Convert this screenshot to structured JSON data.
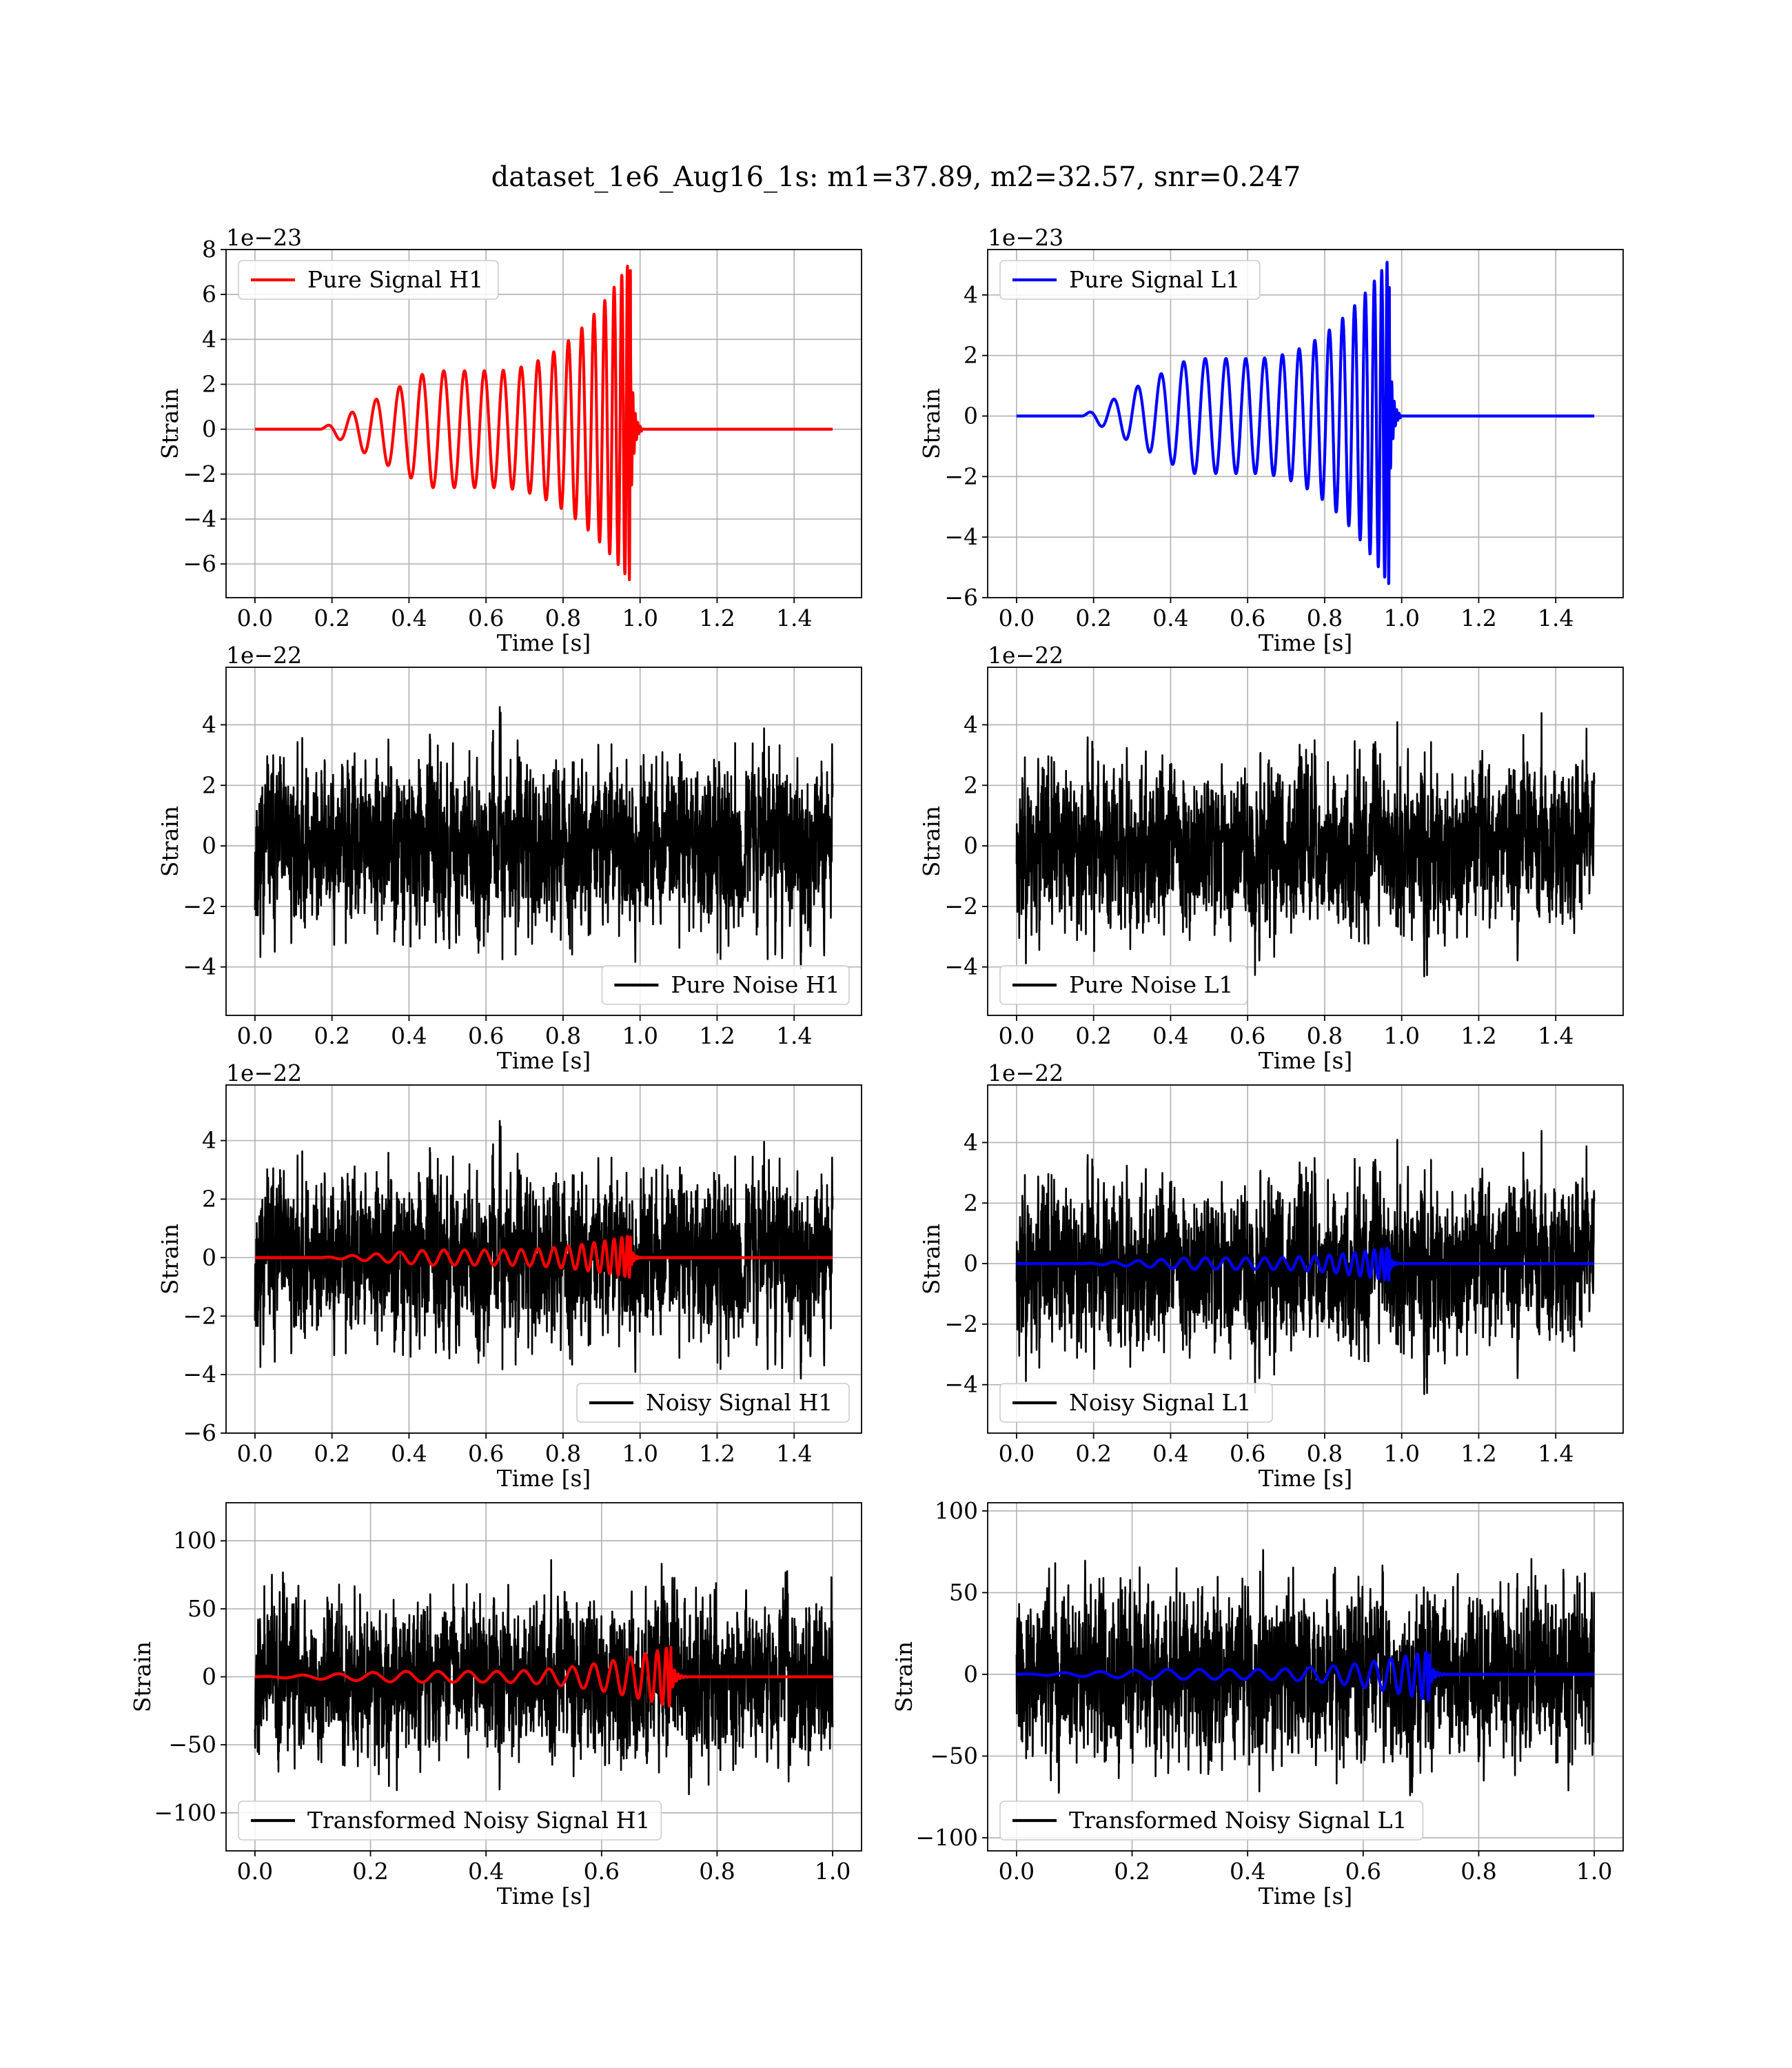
{
  "figure": {
    "title": "dataset_1e6_Aug16_1s: m1=37.89, m2=32.57, snr=0.247"
  },
  "colors": {
    "h1_signal": "#ff0000",
    "l1_signal": "#0000ff",
    "noise": "#000000",
    "grid": "#b0b0b0"
  },
  "chart_data": [
    {
      "type": "line",
      "panel": "pure-signal-h1",
      "xlabel": "Time [s]",
      "ylabel": "Strain",
      "offset_text": "1e−23",
      "legend_position": "top-left",
      "xlim": [
        -0.075,
        1.575
      ],
      "ylim": [
        -7.5,
        8.0
      ],
      "xticks": [
        0.0,
        0.2,
        0.4,
        0.6,
        0.8,
        1.0,
        1.2,
        1.4
      ],
      "xtick_labels": [
        "0.0",
        "0.2",
        "0.4",
        "0.6",
        "0.8",
        "1.0",
        "1.2",
        "1.4"
      ],
      "yticks": [
        -6,
        -4,
        -2,
        0,
        2,
        4,
        6,
        8
      ],
      "ytick_labels": [
        "−6",
        "−4",
        "−2",
        "0",
        "2",
        "4",
        "6",
        "8"
      ],
      "grid": true,
      "series": [
        {
          "name": "Pure Signal H1",
          "color": "#ff0000",
          "kind": "chirp",
          "start": 0.17,
          "merger": 0.975,
          "plateau": 2.6,
          "peak_pos": 7.5,
          "peak_neg": 6.8,
          "x_end": 1.5
        }
      ]
    },
    {
      "type": "line",
      "panel": "pure-signal-l1",
      "xlabel": "Time [s]",
      "ylabel": "Strain",
      "offset_text": "1e−23",
      "legend_position": "top-left",
      "xlim": [
        -0.075,
        1.575
      ],
      "ylim": [
        -6.0,
        5.5
      ],
      "xticks": [
        0.0,
        0.2,
        0.4,
        0.6,
        0.8,
        1.0,
        1.2,
        1.4
      ],
      "xtick_labels": [
        "0.0",
        "0.2",
        "0.4",
        "0.6",
        "0.8",
        "1.0",
        "1.2",
        "1.4"
      ],
      "yticks": [
        -6,
        -4,
        -2,
        0,
        2,
        4
      ],
      "ytick_labels": [
        "−6",
        "−4",
        "−2",
        "0",
        "2",
        "4"
      ],
      "grid": true,
      "series": [
        {
          "name": "Pure Signal L1",
          "color": "#0000ff",
          "kind": "chirp",
          "start": 0.17,
          "merger": 0.968,
          "plateau": 1.9,
          "peak_pos": 5.2,
          "peak_neg": 5.6,
          "x_end": 1.5
        }
      ]
    },
    {
      "type": "line",
      "panel": "pure-noise-h1",
      "xlabel": "Time [s]",
      "ylabel": "Strain",
      "offset_text": "1e−22",
      "legend_position": "bottom-right",
      "xlim": [
        -0.075,
        1.575
      ],
      "ylim": [
        -5.6,
        5.9
      ],
      "xticks": [
        0.0,
        0.2,
        0.4,
        0.6,
        0.8,
        1.0,
        1.2,
        1.4
      ],
      "xtick_labels": [
        "0.0",
        "0.2",
        "0.4",
        "0.6",
        "0.8",
        "1.0",
        "1.2",
        "1.4"
      ],
      "yticks": [
        -4,
        -2,
        0,
        2,
        4
      ],
      "ytick_labels": [
        "−4",
        "−2",
        "0",
        "2",
        "4"
      ],
      "grid": true,
      "series": [
        {
          "name": "Pure Noise H1",
          "color": "#000000",
          "kind": "noise",
          "amplitude": 5.3,
          "seed": 11,
          "x_end": 1.5
        }
      ]
    },
    {
      "type": "line",
      "panel": "pure-noise-l1",
      "xlabel": "Time [s]",
      "ylabel": "Strain",
      "offset_text": "1e−22",
      "legend_position": "bottom-left",
      "xlim": [
        -0.075,
        1.575
      ],
      "ylim": [
        -5.6,
        5.9
      ],
      "xticks": [
        0.0,
        0.2,
        0.4,
        0.6,
        0.8,
        1.0,
        1.2,
        1.4
      ],
      "xtick_labels": [
        "0.0",
        "0.2",
        "0.4",
        "0.6",
        "0.8",
        "1.0",
        "1.2",
        "1.4"
      ],
      "yticks": [
        -4,
        -2,
        0,
        2,
        4
      ],
      "ytick_labels": [
        "−4",
        "−2",
        "0",
        "2",
        "4"
      ],
      "grid": true,
      "series": [
        {
          "name": "Pure Noise L1",
          "color": "#000000",
          "kind": "noise",
          "amplitude": 5.2,
          "seed": 23,
          "x_end": 1.5
        }
      ]
    },
    {
      "type": "line",
      "panel": "noisy-signal-h1",
      "xlabel": "Time [s]",
      "ylabel": "Strain",
      "offset_text": "1e−22",
      "legend_position": "bottom-right",
      "xlim": [
        -0.075,
        1.575
      ],
      "ylim": [
        -6.0,
        5.9
      ],
      "xticks": [
        0.0,
        0.2,
        0.4,
        0.6,
        0.8,
        1.0,
        1.2,
        1.4
      ],
      "xtick_labels": [
        "0.0",
        "0.2",
        "0.4",
        "0.6",
        "0.8",
        "1.0",
        "1.2",
        "1.4"
      ],
      "yticks": [
        -6,
        -4,
        -2,
        0,
        2,
        4
      ],
      "ytick_labels": [
        "−6",
        "−4",
        "−2",
        "0",
        "2",
        "4"
      ],
      "grid": true,
      "series": [
        {
          "name": "Noisy Signal H1",
          "color": "#000000",
          "kind": "noise",
          "amplitude": 5.4,
          "seed": 11,
          "x_end": 1.5
        },
        {
          "color": "#ff0000",
          "kind": "chirp",
          "start": 0.17,
          "merger": 0.975,
          "plateau": 0.26,
          "peak_pos": 0.75,
          "peak_neg": 0.68,
          "x_end": 1.5
        }
      ]
    },
    {
      "type": "line",
      "panel": "noisy-signal-l1",
      "xlabel": "Time [s]",
      "ylabel": "Strain",
      "offset_text": "1e−22",
      "legend_position": "bottom-left",
      "xlim": [
        -0.075,
        1.575
      ],
      "ylim": [
        -5.6,
        5.9
      ],
      "xticks": [
        0.0,
        0.2,
        0.4,
        0.6,
        0.8,
        1.0,
        1.2,
        1.4
      ],
      "xtick_labels": [
        "0.0",
        "0.2",
        "0.4",
        "0.6",
        "0.8",
        "1.0",
        "1.2",
        "1.4"
      ],
      "yticks": [
        -4,
        -2,
        0,
        2,
        4
      ],
      "ytick_labels": [
        "−4",
        "−2",
        "0",
        "2",
        "4"
      ],
      "grid": true,
      "series": [
        {
          "name": "Noisy Signal L1",
          "color": "#000000",
          "kind": "noise",
          "amplitude": 5.2,
          "seed": 23,
          "x_end": 1.5
        },
        {
          "color": "#0000ff",
          "kind": "chirp",
          "start": 0.17,
          "merger": 0.968,
          "plateau": 0.19,
          "peak_pos": 0.52,
          "peak_neg": 0.56,
          "x_end": 1.5
        }
      ]
    },
    {
      "type": "line",
      "panel": "transformed-noisy-signal-h1",
      "xlabel": "Time [s]",
      "ylabel": "Strain",
      "offset_text": "",
      "legend_position": "bottom-left",
      "xlim": [
        -0.05,
        1.05
      ],
      "ylim": [
        -128,
        128
      ],
      "xticks": [
        0.0,
        0.2,
        0.4,
        0.6,
        0.8,
        1.0
      ],
      "xtick_labels": [
        "0.0",
        "0.2",
        "0.4",
        "0.6",
        "0.8",
        "1.0"
      ],
      "yticks": [
        -100,
        -50,
        0,
        50,
        100
      ],
      "ytick_labels": [
        "−100",
        "−50",
        "0",
        "50",
        "100"
      ],
      "grid": true,
      "series": [
        {
          "name": "Transformed Noisy Signal H1",
          "color": "#000000",
          "kind": "noise",
          "amplitude": 110,
          "seed": 37,
          "x_end": 1.0
        },
        {
          "color": "#ff0000",
          "kind": "chirp",
          "start": 0.0,
          "merger": 0.72,
          "plateau": 4,
          "peak_pos": 22,
          "peak_neg": 22,
          "x_end": 1.0
        }
      ]
    },
    {
      "type": "line",
      "panel": "transformed-noisy-signal-l1",
      "xlabel": "Time [s]",
      "ylabel": "Strain",
      "offset_text": "",
      "legend_position": "bottom-left",
      "xlim": [
        -0.05,
        1.05
      ],
      "ylim": [
        -108,
        105
      ],
      "xticks": [
        0.0,
        0.2,
        0.4,
        0.6,
        0.8,
        1.0
      ],
      "xtick_labels": [
        "0.0",
        "0.2",
        "0.4",
        "0.6",
        "0.8",
        "1.0"
      ],
      "yticks": [
        -100,
        -50,
        0,
        50,
        100
      ],
      "ytick_labels": [
        "−100",
        "−50",
        "0",
        "50",
        "100"
      ],
      "grid": true,
      "series": [
        {
          "name": "Transformed Noisy Signal L1",
          "color": "#000000",
          "kind": "noise",
          "amplitude": 98,
          "seed": 41,
          "x_end": 1.0
        },
        {
          "color": "#0000ff",
          "kind": "chirp",
          "start": 0.0,
          "merger": 0.715,
          "plateau": 3,
          "peak_pos": 14,
          "peak_neg": 16,
          "x_end": 1.0
        }
      ]
    }
  ]
}
